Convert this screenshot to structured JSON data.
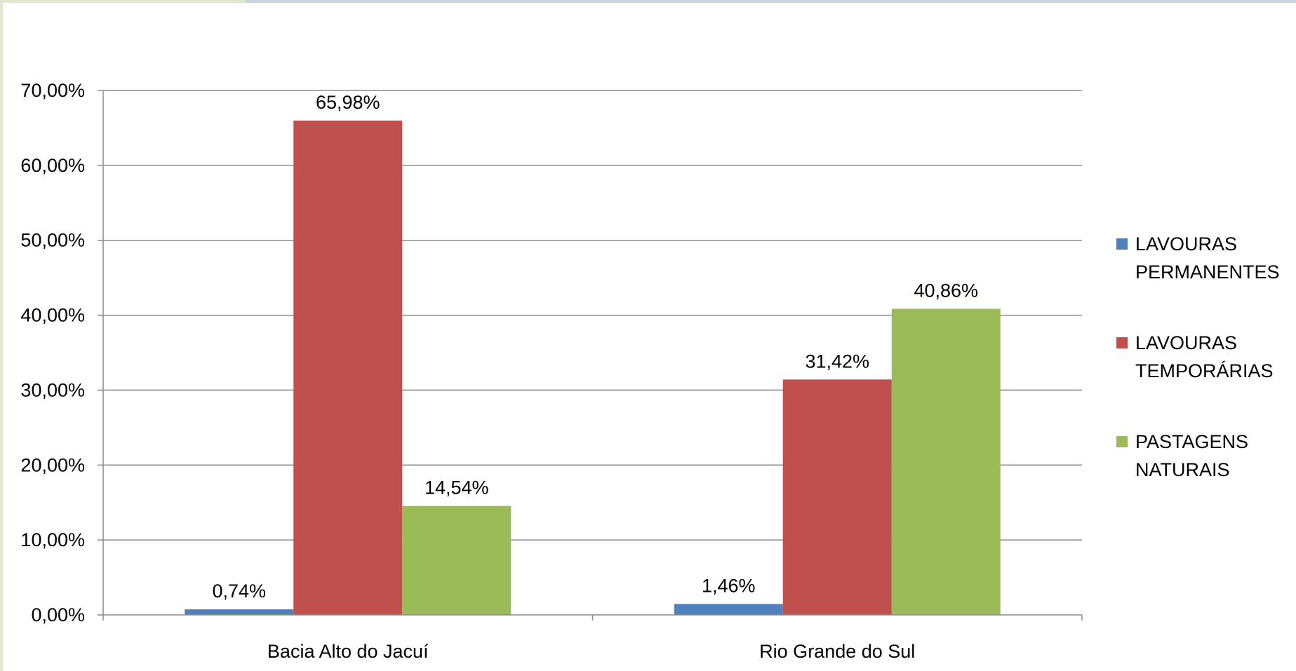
{
  "chart_data": {
    "type": "bar",
    "categories": [
      "Bacia Alto do Jacuí",
      "Rio Grande do Sul"
    ],
    "series": [
      {
        "name": "LAVOURAS PERMANENTES",
        "label_lines": [
          "LAVOURAS",
          "PERMANENTES"
        ],
        "color": "#4f81bd",
        "values": [
          0.74,
          1.46
        ],
        "labels": [
          "0,74%",
          "1,46%"
        ]
      },
      {
        "name": "LAVOURAS TEMPORÁRIAS",
        "label_lines": [
          "LAVOURAS",
          "TEMPORÁRIAS"
        ],
        "color": "#c0504d",
        "values": [
          65.98,
          31.42
        ],
        "labels": [
          "65,98%",
          "31,42%"
        ]
      },
      {
        "name": "PASTAGENS NATURAIS",
        "label_lines": [
          "PASTAGENS",
          "NATURAIS"
        ],
        "color": "#9bbb59",
        "values": [
          14.54,
          40.86
        ],
        "labels": [
          "14,54%",
          "40,86%"
        ]
      }
    ],
    "ylim": [
      0,
      70
    ],
    "yticks": [
      0,
      10,
      20,
      30,
      40,
      50,
      60,
      70
    ],
    "ytick_labels": [
      "0,00%",
      "10,00%",
      "20,00%",
      "30,00%",
      "40,00%",
      "50,00%",
      "60,00%",
      "70,00%"
    ],
    "grid": true,
    "legend_position": "right"
  }
}
